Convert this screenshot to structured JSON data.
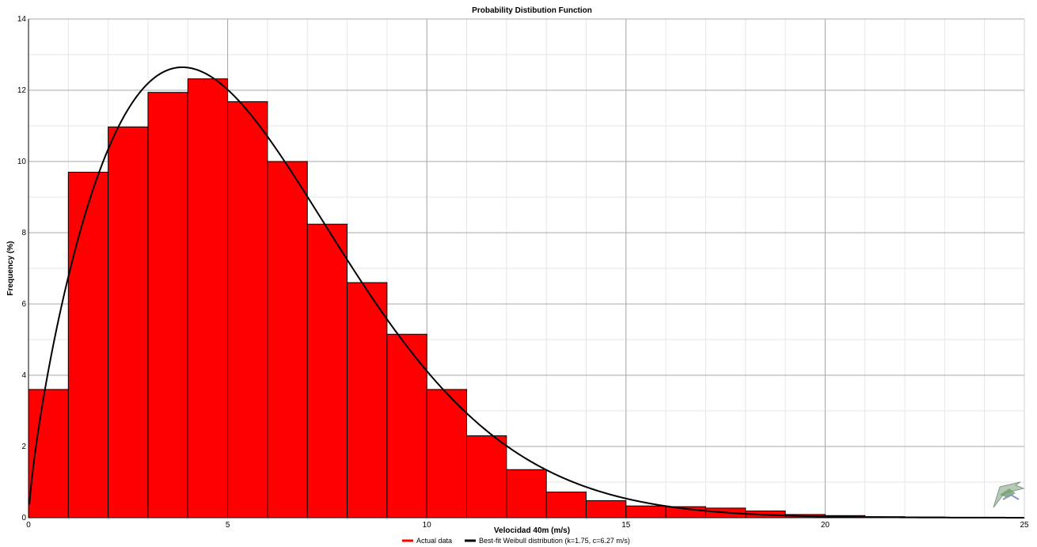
{
  "chart_data": {
    "type": "bar",
    "title": "Probability Distibution Function",
    "xlabel": "Velocidad 40m (m/s)",
    "ylabel": "Frequency (%)",
    "xlim": [
      0,
      25
    ],
    "ylim": [
      0,
      14
    ],
    "x_ticks": [
      0,
      5,
      10,
      15,
      20,
      25
    ],
    "y_ticks": [
      0,
      2,
      4,
      6,
      8,
      10,
      12,
      14
    ],
    "grid": true,
    "legend_position": "bottom-center",
    "bin_width": 1,
    "series": [
      {
        "name": "Actual data",
        "type": "bar",
        "color": "#ff0000",
        "bins": [
          0,
          1,
          2,
          3,
          4,
          5,
          6,
          7,
          8,
          9,
          10,
          11,
          12,
          13,
          14,
          15,
          16,
          17,
          18,
          19,
          20,
          21,
          22,
          23,
          24
        ],
        "values": [
          3.6,
          9.7,
          10.97,
          11.94,
          12.32,
          11.68,
          10.0,
          8.24,
          6.6,
          5.15,
          3.6,
          2.3,
          1.35,
          0.72,
          0.48,
          0.33,
          0.31,
          0.27,
          0.19,
          0.09,
          0.06,
          0.03,
          0.02,
          0.01,
          0.005
        ]
      },
      {
        "name": "Best-fit Weibull distribution (k=1.75, c=6.27 m/s)",
        "type": "line",
        "color": "#000000",
        "weibull_k": 1.75,
        "weibull_c": 6.27
      }
    ]
  }
}
